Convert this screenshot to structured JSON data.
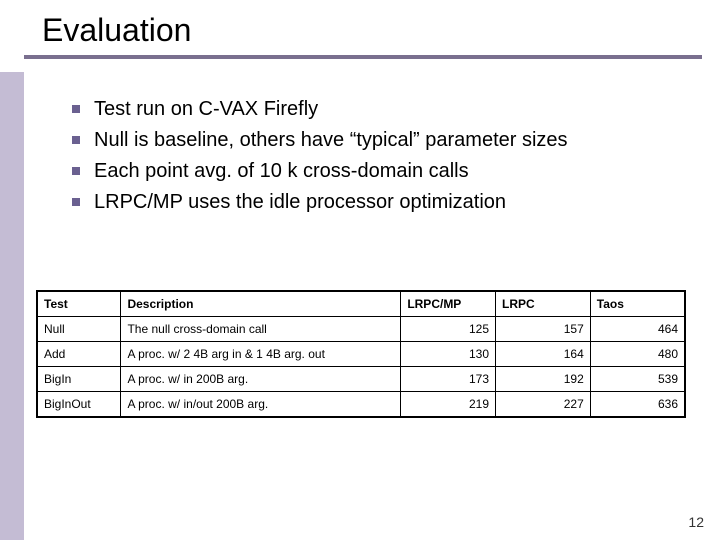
{
  "title": "Evaluation",
  "bullets": [
    "Test run on C-VAX Firefly",
    "Null is baseline, others have “typical” parameter sizes",
    "Each point avg. of 10 k cross-domain calls",
    "LRPC/MP uses the idle processor optimization"
  ],
  "table": {
    "columns": [
      "Test",
      "Description",
      "LRPC/MP",
      "LRPC",
      "Taos"
    ],
    "rows": [
      [
        "Null",
        "The null cross-domain call",
        "125",
        "157",
        "464"
      ],
      [
        "Add",
        "A proc. w/ 2 4B arg in & 1 4B arg. out",
        "130",
        "164",
        "480"
      ],
      [
        "BigIn",
        "A proc. w/ in 200B arg.",
        "173",
        "192",
        "539"
      ],
      [
        "BigInOut",
        "A proc. w/ in/out 200B arg.",
        "219",
        "227",
        "636"
      ]
    ],
    "column_align": [
      "left",
      "left",
      "right",
      "right",
      "right"
    ],
    "border_color": "#000000",
    "header_bg": "#ffffff",
    "font_size": 12
  },
  "colors": {
    "sidebar": "#c4bcd4",
    "underline": "#7a6f8f",
    "bullet_marker": "#6a6090",
    "background": "#ffffff",
    "text": "#000000"
  },
  "page_number": "12"
}
